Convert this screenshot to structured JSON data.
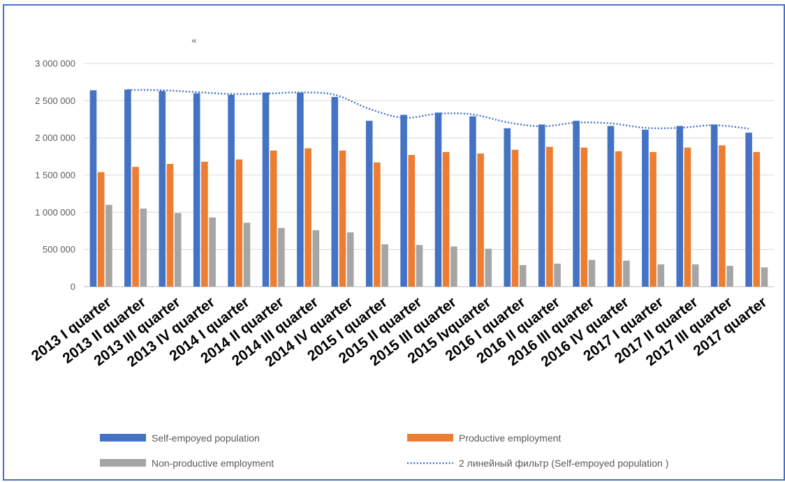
{
  "chart_data": {
    "type": "bar",
    "title": "«",
    "categories": [
      "2013 I quarter",
      "2013 II quarter",
      "2013 III quarter",
      "2013 IV quarter",
      "2014 I quarter",
      "2014 II quarter",
      "2014 III quarter",
      "2014 IV quarter",
      "2015 I quarter",
      "2015 II quarter",
      "2015 III quarter",
      "2015 Ivquarter",
      "2016 I quarter",
      "2016 II quarter",
      "2016 III quarter",
      "2016 IV quarter",
      "2017 I quarter",
      "2017 II quarter",
      "2017 III quarter",
      "2017 quarter"
    ],
    "series": [
      {
        "name": "Self-empoyed population",
        "color": "#4472c4",
        "values": [
          2640000,
          2650000,
          2630000,
          2600000,
          2580000,
          2610000,
          2610000,
          2550000,
          2230000,
          2310000,
          2340000,
          2290000,
          2130000,
          2180000,
          2230000,
          2160000,
          2110000,
          2160000,
          2180000,
          2070000
        ]
      },
      {
        "name": "Productive employment",
        "color": "#ed7d31",
        "values": [
          1540000,
          1610000,
          1650000,
          1680000,
          1710000,
          1830000,
          1860000,
          1830000,
          1670000,
          1770000,
          1810000,
          1790000,
          1840000,
          1880000,
          1870000,
          1820000,
          1810000,
          1870000,
          1900000,
          1810000
        ]
      },
      {
        "name": "Non-productive employment",
        "color": "#a5a5a5",
        "values": [
          1100000,
          1050000,
          990000,
          930000,
          860000,
          790000,
          760000,
          730000,
          570000,
          560000,
          540000,
          510000,
          290000,
          310000,
          360000,
          350000,
          300000,
          300000,
          280000,
          260000
        ]
      }
    ],
    "trendline": {
      "name": "2 линейный фильтр (Self-empoyed population )",
      "color": "#4472c4",
      "style": "dotted"
    },
    "yticks": [
      "0",
      "500 000",
      "1 000 000",
      "1 500 000",
      "2 000 000",
      "2 500 000",
      "3 000 000"
    ],
    "ylim": [
      0,
      3000000
    ],
    "grid": true,
    "legend_position": "bottom"
  }
}
